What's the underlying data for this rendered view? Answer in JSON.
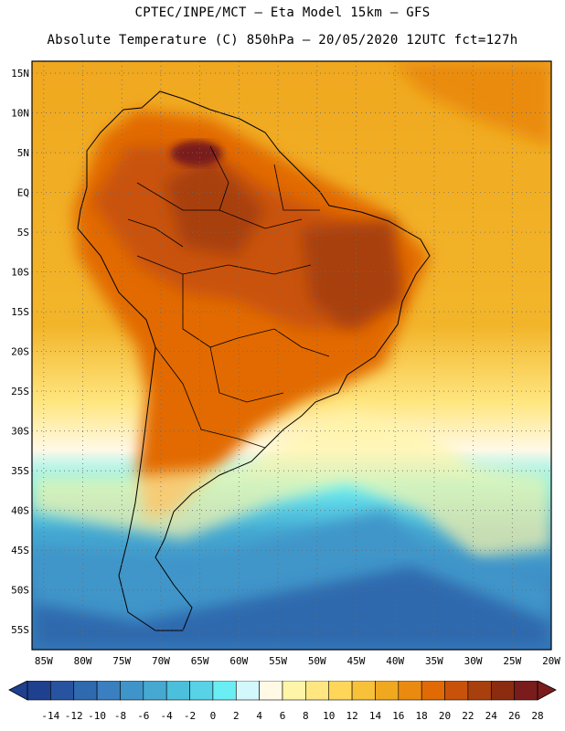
{
  "header": {
    "line1": "CPTEC/INPE/MCT —  Eta Model 15km — GFS",
    "line2": "Absolute Temperature (C) 850hPa — 20/05/2020 12UTC fct=127h"
  },
  "map": {
    "lat_labels": [
      "15N",
      "10N",
      "5N",
      "EQ",
      "5S",
      "10S",
      "15S",
      "20S",
      "25S",
      "30S",
      "35S",
      "40S",
      "45S",
      "50S",
      "55S"
    ],
    "lon_labels": [
      "85W",
      "80W",
      "75W",
      "70W",
      "65W",
      "60W",
      "55W",
      "50W",
      "45W",
      "40W",
      "35W",
      "30W",
      "25W",
      "20W"
    ],
    "lat_range": [
      -57.5,
      16.5
    ],
    "lon_range": [
      -86.5,
      -20.0
    ],
    "grid": "dotted"
  },
  "colorbar": {
    "ticks": [
      "-14",
      "-12",
      "-10",
      "-8",
      "-6",
      "-4",
      "-2",
      "0",
      "2",
      "4",
      "6",
      "8",
      "10",
      "12",
      "14",
      "16",
      "18",
      "20",
      "22",
      "24",
      "26",
      "28"
    ],
    "colors": [
      "#1f3f8f",
      "#2853a0",
      "#2f69ae",
      "#3a7fbf",
      "#3f95c9",
      "#45a9d2",
      "#4cbfdc",
      "#57d2e6",
      "#6aeef3",
      "#d3f8fb",
      "#fff9e6",
      "#fff5a8",
      "#ffe680",
      "#ffd65a",
      "#f7c13a",
      "#f0a81f",
      "#ea8b10",
      "#e26a05",
      "#c9520a",
      "#a8400e",
      "#8b2b10",
      "#7a1c1c"
    ]
  }
}
